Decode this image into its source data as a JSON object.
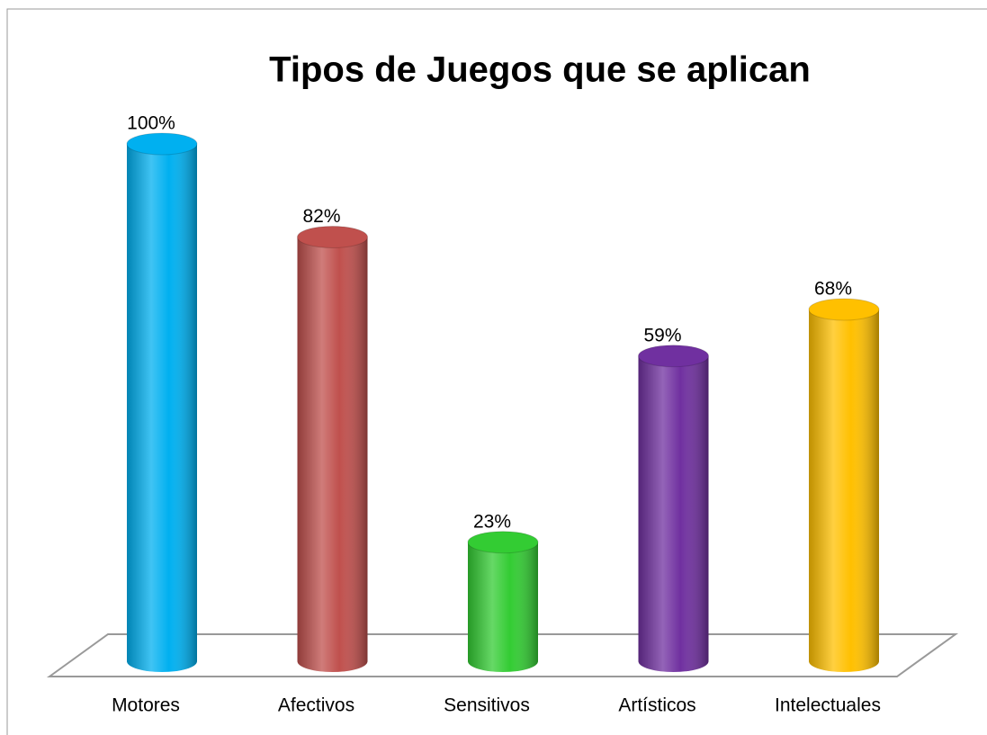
{
  "chart_data": {
    "type": "bar",
    "title": "Tipos de Juegos que se aplican",
    "categories": [
      "Motores",
      "Afectivos",
      "Sensitivos",
      "Artísticos",
      "Intelectuales"
    ],
    "values": [
      100,
      82,
      23,
      59,
      68
    ],
    "value_labels": [
      "100%",
      "82%",
      "23%",
      "59%",
      "68%"
    ],
    "colors": [
      "#00b0f0",
      "#c0504d",
      "#33cc33",
      "#7030a0",
      "#ffc000"
    ],
    "ylim": [
      0,
      100
    ]
  }
}
